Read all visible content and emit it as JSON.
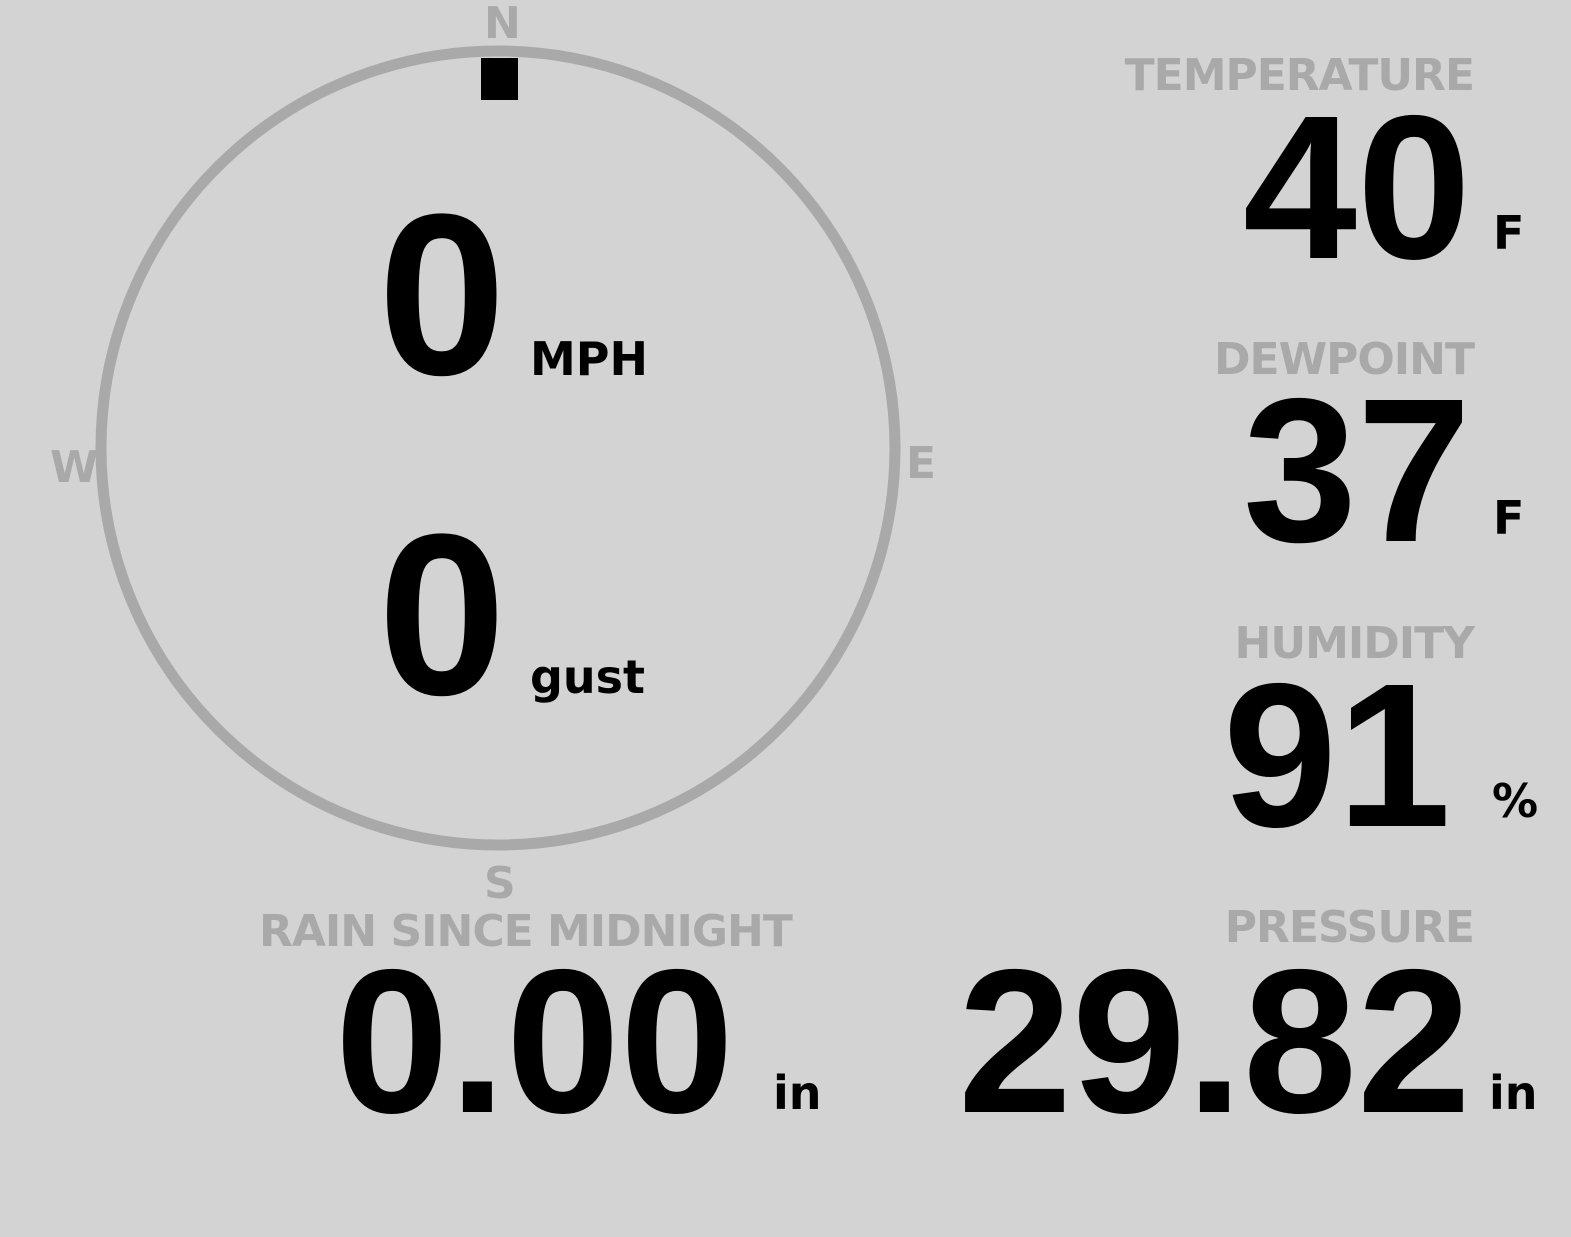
{
  "colors": {
    "background": "#d3d3d3",
    "label": "#a9a9a9",
    "value": "#000000"
  },
  "wind": {
    "compass": {
      "n": "N",
      "e": "E",
      "s": "S",
      "w": "W"
    },
    "direction_indicator": "N",
    "speed": "0",
    "speed_unit": "MPH",
    "gust": "0",
    "gust_unit": "gust"
  },
  "temperature": {
    "label": "TEMPERATURE",
    "value": "40",
    "unit": "F"
  },
  "dewpoint": {
    "label": "DEWPOINT",
    "value": "37",
    "unit": "F"
  },
  "humidity": {
    "label": "HUMIDITY",
    "value": "91",
    "unit": "%"
  },
  "rain": {
    "label": "RAIN SINCE MIDNIGHT",
    "value": "0.00",
    "unit": "in"
  },
  "pressure": {
    "label": "PRESSURE",
    "value": "29.82",
    "unit": "in"
  }
}
